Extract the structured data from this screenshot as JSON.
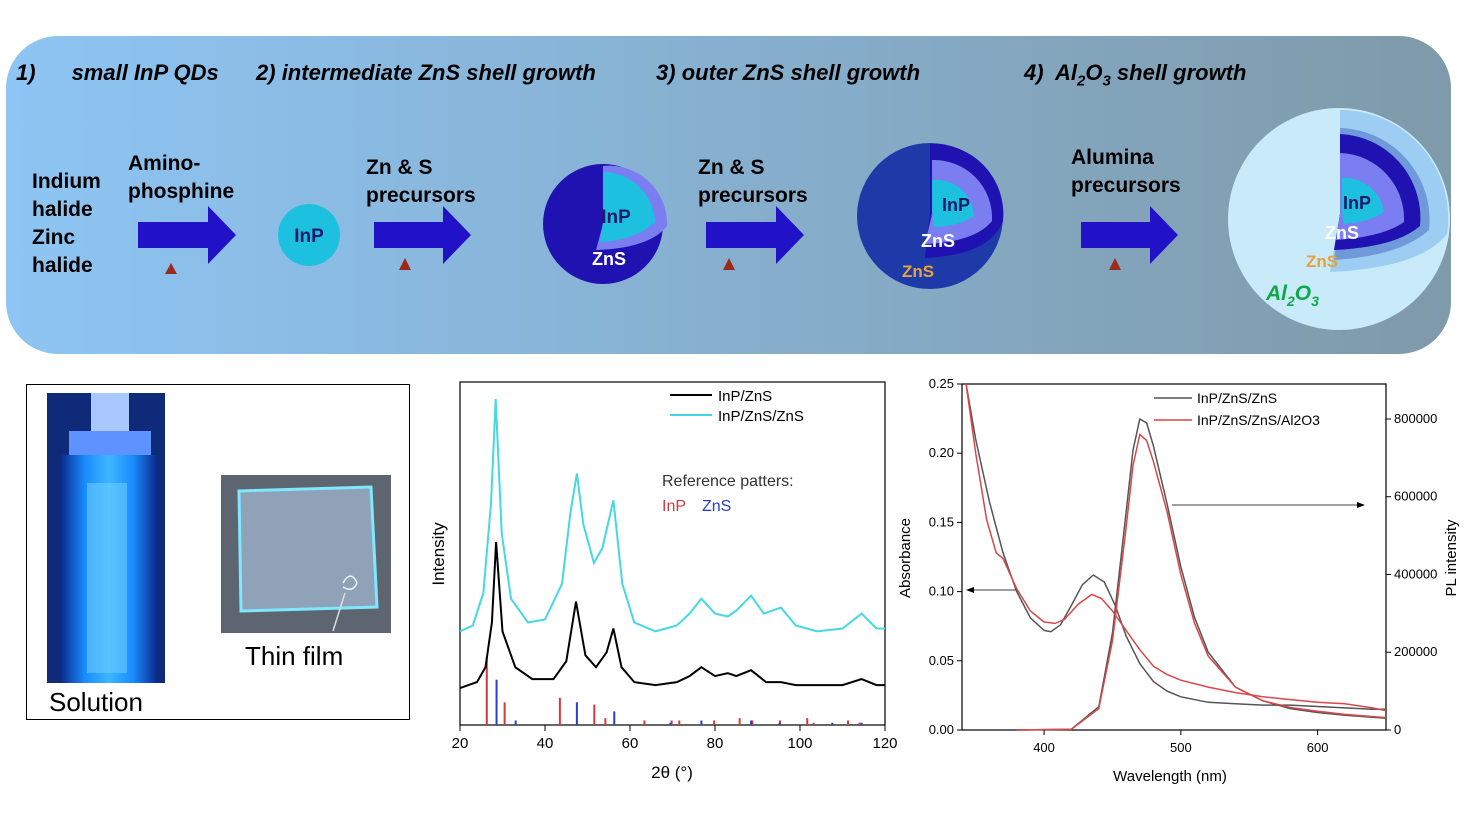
{
  "scheme": {
    "steps": [
      {
        "num": "1)",
        "label": "small InP QDs"
      },
      {
        "num": "2)",
        "label": "intermediate ZnS shell growth"
      },
      {
        "num": "3)",
        "label": "outer ZnS shell growth"
      },
      {
        "num": "4)",
        "label": "Al",
        "sub": "2",
        "mid": "O",
        "sub2": "3",
        "tail": " shell growth"
      }
    ],
    "reagents": {
      "start": [
        "Indium",
        "halide",
        "Zinc",
        "halide"
      ],
      "r1": [
        "Amino-",
        "phosphine"
      ],
      "r2": [
        "Zn & S",
        "precursors"
      ],
      "r3": [
        "Zn & S",
        "precursors"
      ],
      "r4": [
        "Alumina",
        "precursors"
      ]
    },
    "particles": {
      "core": "InP",
      "shell": "ZnS",
      "outer_shell": "ZnS",
      "al_main": "Al",
      "al_sub": "2",
      "o_main": "O",
      "o_sub": "3"
    },
    "colors": {
      "banner_left": "#8ec5f4",
      "banner_right": "#7f9aa9",
      "arrow": "#2112c8",
      "heat": "#9b2a1c",
      "core": "#1ec0e0",
      "shell_inner": "#7b7ef0",
      "shell_dark": "#1f12b0",
      "shell_outer": "#1d3aa8",
      "alumina": "#c9eaf8",
      "zns_outer_label": "#e8a33a",
      "al2o3_label": "#0fa84a"
    }
  },
  "photos": {
    "solution_caption": "Solution",
    "film_caption": "Thin film"
  },
  "chart_data": [
    {
      "type": "line",
      "xlabel": "2θ (°)",
      "ylabel": "Intensity",
      "xlim": [
        20,
        120
      ],
      "xticks": [
        "20",
        "40",
        "60",
        "80",
        "100",
        "120"
      ],
      "legend_placement": "top-right",
      "series": [
        {
          "name": "InP/ZnS",
          "color": "#000000",
          "x": [
            20,
            24,
            26,
            27.5,
            28.5,
            30,
            33,
            37,
            42,
            45,
            47.3,
            49.5,
            52,
            54.5,
            56.1,
            58,
            61,
            66,
            71,
            74,
            76.8,
            80,
            83,
            85,
            88.5,
            92,
            95.5,
            99,
            104,
            110,
            114.5,
            118,
            120
          ],
          "y": [
            0.03,
            0.05,
            0.1,
            0.25,
            0.52,
            0.22,
            0.1,
            0.06,
            0.06,
            0.12,
            0.32,
            0.14,
            0.1,
            0.15,
            0.23,
            0.1,
            0.05,
            0.04,
            0.05,
            0.07,
            0.1,
            0.07,
            0.08,
            0.07,
            0.09,
            0.05,
            0.05,
            0.04,
            0.04,
            0.04,
            0.06,
            0.04,
            0.04
          ]
        },
        {
          "name": "InP/ZnS/ZnS",
          "color": "#45d8e4",
          "x": [
            20,
            23,
            25.5,
            27.3,
            28.4,
            29.8,
            32,
            36,
            40,
            44,
            46,
            47.5,
            49,
            51.5,
            53.5,
            56.1,
            58.2,
            61,
            66,
            71,
            74,
            76.8,
            80,
            83,
            85,
            88.5,
            91.5,
            95.5,
            99,
            104,
            110,
            114.5,
            118,
            120
          ],
          "y": [
            0.22,
            0.24,
            0.35,
            0.65,
            1.0,
            0.55,
            0.33,
            0.25,
            0.26,
            0.38,
            0.62,
            0.75,
            0.58,
            0.45,
            0.5,
            0.66,
            0.38,
            0.25,
            0.22,
            0.24,
            0.28,
            0.33,
            0.28,
            0.27,
            0.29,
            0.34,
            0.28,
            0.3,
            0.24,
            0.22,
            0.23,
            0.28,
            0.23,
            0.23
          ]
        }
      ],
      "annotations": {
        "ref_title": "Reference patters:",
        "ref_inp": "InP",
        "ref_zns": "ZnS",
        "ref_inp_color": "#d23a3a",
        "ref_zns_color": "#2a3cc8"
      },
      "reference_InP": {
        "x": [
          26.3,
          30.5,
          43.5,
          51.6,
          54.2,
          63.4,
          69.8,
          71.6,
          79.8,
          85.8,
          88.8,
          95.3,
          101.7,
          103.2,
          111.3,
          114.0
        ],
        "h": [
          0.3,
          0.1,
          0.12,
          0.09,
          0.03,
          0.02,
          0.02,
          0.02,
          0.02,
          0.03,
          0.02,
          0.02,
          0.03,
          0.01,
          0.02,
          0.01
        ]
      },
      "reference_ZnS": {
        "x": [
          28.6,
          33.1,
          47.5,
          56.3,
          69.5,
          76.8,
          88.5,
          95.2,
          107.6,
          114.5
        ],
        "h": [
          0.2,
          0.02,
          0.1,
          0.06,
          0.01,
          0.02,
          0.02,
          0.01,
          0.01,
          0.01
        ]
      }
    },
    {
      "type": "line",
      "xlabel": "Wavelength (nm)",
      "ylabel": "Absorbance",
      "ylabel_right": "PL intensity",
      "xlim": [
        340,
        650
      ],
      "ylim": [
        0,
        0.25
      ],
      "ylim_right": [
        0,
        890000
      ],
      "xticks": [
        "400",
        "500",
        "600"
      ],
      "yticks": [
        "0.00",
        "0.05",
        "0.10",
        "0.15",
        "0.20",
        "0.25"
      ],
      "yticks_right": [
        "0",
        "200000",
        "400000",
        "600000",
        "800000"
      ],
      "legend_placement": "top-right",
      "series": [
        {
          "name": "InP/ZnS/ZnS",
          "axis": "left",
          "color": "#555555",
          "x": [
            343,
            350,
            360,
            370,
            380,
            390,
            400,
            405,
            412,
            420,
            428,
            436,
            444,
            452,
            460,
            470,
            480,
            490,
            500,
            520,
            540,
            560,
            580,
            600,
            620,
            640,
            650
          ],
          "y": [
            0.25,
            0.21,
            0.165,
            0.128,
            0.1,
            0.081,
            0.072,
            0.071,
            0.076,
            0.09,
            0.105,
            0.112,
            0.107,
            0.09,
            0.068,
            0.048,
            0.035,
            0.028,
            0.024,
            0.02,
            0.019,
            0.018,
            0.018,
            0.017,
            0.016,
            0.015,
            0.015
          ]
        },
        {
          "name": "InP/ZnS/ZnS",
          "axis": "right",
          "color": "#555555",
          "x": [
            380,
            420,
            440,
            450,
            460,
            465,
            470,
            475,
            480,
            490,
            500,
            510,
            520,
            540,
            560,
            580,
            600,
            620,
            650
          ],
          "y": [
            0,
            2000,
            60000,
            250000,
            560000,
            720000,
            800000,
            790000,
            730000,
            580000,
            420000,
            290000,
            200000,
            110000,
            75000,
            55000,
            45000,
            38000,
            30000
          ]
        },
        {
          "name": "InP/ZnS/ZnS/Al2O3",
          "axis": "left",
          "color": "#d9474a",
          "x": [
            343,
            350,
            358,
            365,
            370,
            380,
            390,
            400,
            408,
            415,
            425,
            435,
            442,
            450,
            460,
            470,
            480,
            490,
            500,
            520,
            540,
            560,
            580,
            600,
            620,
            640,
            650
          ],
          "y": [
            0.25,
            0.2,
            0.152,
            0.128,
            0.124,
            0.102,
            0.086,
            0.078,
            0.077,
            0.08,
            0.091,
            0.098,
            0.095,
            0.086,
            0.072,
            0.058,
            0.046,
            0.04,
            0.036,
            0.031,
            0.027,
            0.024,
            0.022,
            0.02,
            0.019,
            0.016,
            0.014
          ]
        },
        {
          "name": "InP/ZnS/ZnS/Al2O3",
          "axis": "right",
          "color": "#d9474a",
          "x": [
            380,
            420,
            440,
            450,
            460,
            465,
            470,
            475,
            480,
            490,
            500,
            510,
            520,
            540,
            560,
            580,
            600,
            620,
            650
          ],
          "y": [
            0,
            2000,
            55000,
            230000,
            520000,
            680000,
            760000,
            745000,
            690000,
            560000,
            400000,
            275000,
            190000,
            110000,
            75000,
            58000,
            48000,
            40000,
            32000
          ]
        }
      ]
    }
  ]
}
